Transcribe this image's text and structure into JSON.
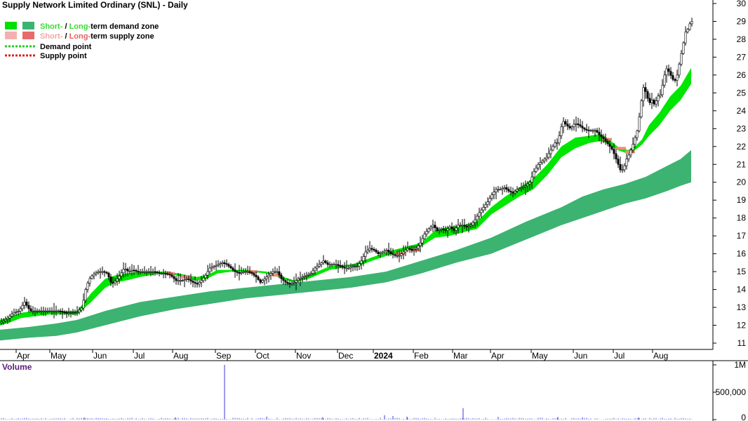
{
  "chart_data": {
    "type": "candlestick",
    "title": "Supply Network Limited Ordinary (SNL) - Daily",
    "legend": {
      "placement": "top-left",
      "entries": [
        {
          "prefix": "Short-",
          "sep": " / ",
          "mid": "Long-",
          "suffix": "term demand zone",
          "prefix_color": "#33dd33",
          "mid_color": "#33dd33",
          "swatches": [
            "#00e000",
            "#3cb371"
          ]
        },
        {
          "prefix": "Short-",
          "sep": " / ",
          "mid": "Long-",
          "suffix": "term supply zone",
          "prefix_color": "#f4a6a6",
          "mid_color": "#e86060",
          "swatches": [
            "#f4b0b0",
            "#e86a6a"
          ]
        },
        {
          "label": "Demand point",
          "dash_color": "#22cc22"
        },
        {
          "label": "Supply point",
          "dash_color": "#dd2222"
        }
      ]
    },
    "price_axis": {
      "position": "right",
      "ylim": [
        10.5,
        30
      ],
      "ticks": [
        "11",
        "12",
        "13",
        "14",
        "15",
        "16",
        "17",
        "18",
        "19",
        "20",
        "21",
        "22",
        "23",
        "24",
        "25",
        "26",
        "27",
        "28",
        "29",
        "30"
      ]
    },
    "x_labels": [
      "Apr",
      "May",
      "Jun",
      "Jul",
      "Aug",
      "Sep",
      "Oct",
      "Nov",
      "Dec",
      "2024",
      "Feb",
      "Mar",
      "Apr",
      "May",
      "Jun",
      "Jul",
      "Aug"
    ],
    "price_path": [
      [
        0,
        12.1
      ],
      [
        6,
        12.2
      ],
      [
        14,
        12.4
      ],
      [
        22,
        12.7
      ],
      [
        30,
        12.8
      ],
      [
        38,
        13.3
      ],
      [
        46,
        12.8
      ],
      [
        56,
        12.8
      ],
      [
        66,
        12.8
      ],
      [
        76,
        12.8
      ],
      [
        86,
        12.8
      ],
      [
        96,
        12.7
      ],
      [
        104,
        12.7
      ],
      [
        112,
        12.7
      ],
      [
        120,
        13.0
      ],
      [
        126,
        14.2
      ],
      [
        132,
        14.7
      ],
      [
        138,
        14.9
      ],
      [
        144,
        15.0
      ],
      [
        150,
        15.0
      ],
      [
        156,
        14.9
      ],
      [
        162,
        14.3
      ],
      [
        168,
        14.5
      ],
      [
        174,
        14.8
      ],
      [
        180,
        15.2
      ],
      [
        186,
        15.0
      ],
      [
        192,
        15.1
      ],
      [
        198,
        15.0
      ],
      [
        206,
        15.0
      ],
      [
        214,
        15.0
      ],
      [
        222,
        15.0
      ],
      [
        230,
        14.9
      ],
      [
        238,
        14.9
      ],
      [
        246,
        14.8
      ],
      [
        254,
        14.5
      ],
      [
        262,
        14.5
      ],
      [
        270,
        14.6
      ],
      [
        278,
        14.4
      ],
      [
        284,
        14.3
      ],
      [
        290,
        14.5
      ],
      [
        296,
        14.8
      ],
      [
        302,
        15.2
      ],
      [
        308,
        15.3
      ],
      [
        314,
        15.4
      ],
      [
        320,
        15.5
      ],
      [
        326,
        15.4
      ],
      [
        332,
        15.2
      ],
      [
        338,
        15.0
      ],
      [
        344,
        14.9
      ],
      [
        350,
        15.0
      ],
      [
        356,
        15.0
      ],
      [
        362,
        14.9
      ],
      [
        368,
        14.7
      ],
      [
        374,
        14.4
      ],
      [
        380,
        14.6
      ],
      [
        386,
        14.8
      ],
      [
        392,
        15.0
      ],
      [
        398,
        15.0
      ],
      [
        404,
        14.6
      ],
      [
        410,
        14.4
      ],
      [
        416,
        14.3
      ],
      [
        422,
        14.4
      ],
      [
        428,
        14.6
      ],
      [
        434,
        14.7
      ],
      [
        440,
        14.8
      ],
      [
        446,
        14.9
      ],
      [
        452,
        15.2
      ],
      [
        458,
        15.4
      ],
      [
        464,
        15.6
      ],
      [
        470,
        15.4
      ],
      [
        476,
        15.4
      ],
      [
        482,
        15.4
      ],
      [
        488,
        15.3
      ],
      [
        494,
        15.2
      ],
      [
        500,
        15.2
      ],
      [
        506,
        15.3
      ],
      [
        512,
        15.3
      ],
      [
        518,
        15.6
      ],
      [
        524,
        16.1
      ],
      [
        530,
        16.3
      ],
      [
        536,
        16.2
      ],
      [
        542,
        16.0
      ],
      [
        548,
        16.1
      ],
      [
        554,
        16.2
      ],
      [
        560,
        16.0
      ],
      [
        566,
        15.9
      ],
      [
        572,
        15.9
      ],
      [
        578,
        16.1
      ],
      [
        584,
        16.3
      ],
      [
        590,
        16.2
      ],
      [
        596,
        16.3
      ],
      [
        602,
        16.6
      ],
      [
        608,
        17.1
      ],
      [
        614,
        17.4
      ],
      [
        620,
        17.6
      ],
      [
        626,
        17.3
      ],
      [
        632,
        17.4
      ],
      [
        638,
        17.3
      ],
      [
        644,
        17.5
      ],
      [
        650,
        17.3
      ],
      [
        656,
        17.6
      ],
      [
        662,
        17.6
      ],
      [
        668,
        17.5
      ],
      [
        674,
        17.6
      ],
      [
        680,
        17.9
      ],
      [
        686,
        18.3
      ],
      [
        692,
        18.6
      ],
      [
        698,
        18.9
      ],
      [
        704,
        19.3
      ],
      [
        710,
        19.6
      ],
      [
        716,
        19.6
      ],
      [
        722,
        19.7
      ],
      [
        728,
        19.5
      ],
      [
        734,
        19.4
      ],
      [
        740,
        19.6
      ],
      [
        746,
        19.7
      ],
      [
        752,
        19.8
      ],
      [
        758,
        20.0
      ],
      [
        764,
        20.6
      ],
      [
        770,
        21.0
      ],
      [
        776,
        21.2
      ],
      [
        782,
        21.4
      ],
      [
        788,
        21.8
      ],
      [
        794,
        22.2
      ],
      [
        798,
        22.2
      ],
      [
        802,
        23.0
      ],
      [
        806,
        23.4
      ],
      [
        810,
        23.2
      ],
      [
        816,
        23.0
      ],
      [
        822,
        23.3
      ],
      [
        828,
        23.2
      ],
      [
        834,
        23.0
      ],
      [
        840,
        22.9
      ],
      [
        846,
        22.9
      ],
      [
        852,
        22.9
      ],
      [
        858,
        22.6
      ],
      [
        864,
        22.4
      ],
      [
        870,
        22.1
      ],
      [
        876,
        21.8
      ],
      [
        880,
        21.4
      ],
      [
        884,
        21.0
      ],
      [
        888,
        20.6
      ],
      [
        892,
        20.8
      ],
      [
        896,
        21.3
      ],
      [
        900,
        21.6
      ],
      [
        904,
        22.0
      ],
      [
        908,
        22.5
      ],
      [
        912,
        23.0
      ],
      [
        916,
        24.3
      ],
      [
        920,
        25.3
      ],
      [
        924,
        25.0
      ],
      [
        928,
        24.4
      ],
      [
        932,
        24.6
      ],
      [
        936,
        24.3
      ],
      [
        940,
        24.8
      ],
      [
        944,
        24.9
      ],
      [
        948,
        25.6
      ],
      [
        952,
        26.4
      ],
      [
        956,
        26.2
      ],
      [
        960,
        25.9
      ],
      [
        964,
        25.6
      ],
      [
        968,
        26.0
      ],
      [
        972,
        26.8
      ],
      [
        976,
        27.6
      ],
      [
        980,
        28.4
      ],
      [
        984,
        28.6
      ],
      [
        987,
        29.0
      ]
    ],
    "short_term_zone": [
      [
        0,
        12.0,
        12.3
      ],
      [
        10,
        12.1,
        12.4
      ],
      [
        30,
        12.4,
        12.7
      ],
      [
        50,
        12.5,
        12.8
      ],
      [
        70,
        12.6,
        12.8
      ],
      [
        100,
        12.6,
        12.8
      ],
      [
        110,
        12.6,
        12.8
      ],
      [
        130,
        13.3,
        13.8
      ],
      [
        150,
        14.1,
        14.6
      ],
      [
        165,
        14.4,
        14.8
      ],
      [
        180,
        14.5,
        14.9
      ],
      [
        200,
        14.7,
        15.0
      ],
      [
        215,
        14.8,
        15.0
      ],
      [
        225,
        14.9,
        15.0
      ],
      [
        240,
        14.9,
        15.0
      ],
      [
        280,
        14.5,
        14.7
      ],
      [
        295,
        14.6,
        14.8
      ],
      [
        310,
        14.9,
        15.1
      ],
      [
        330,
        15.0,
        15.1
      ],
      [
        355,
        15.0,
        15.1
      ],
      [
        380,
        14.9,
        15.0
      ],
      [
        420,
        14.4,
        14.5
      ],
      [
        440,
        14.6,
        14.8
      ],
      [
        470,
        15.1,
        15.3
      ],
      [
        500,
        15.3,
        15.4
      ],
      [
        510,
        15.3,
        15.5
      ],
      [
        530,
        15.6,
        15.8
      ],
      [
        560,
        16.0,
        16.2
      ],
      [
        580,
        16.2,
        16.4
      ],
      [
        600,
        16.4,
        16.6
      ],
      [
        620,
        16.9,
        17.3
      ],
      [
        640,
        17.0,
        17.5
      ],
      [
        660,
        17.2,
        17.6
      ],
      [
        680,
        17.4,
        17.8
      ],
      [
        700,
        18.2,
        18.6
      ],
      [
        720,
        18.7,
        19.2
      ],
      [
        740,
        19.2,
        19.7
      ],
      [
        760,
        19.6,
        20.2
      ],
      [
        780,
        20.4,
        21.0
      ],
      [
        800,
        21.4,
        22.0
      ],
      [
        820,
        21.9,
        22.5
      ],
      [
        840,
        22.2,
        22.6
      ],
      [
        855,
        22.3,
        22.7
      ],
      [
        865,
        22.2,
        22.5
      ],
      [
        880,
        21.8,
        22.0
      ],
      [
        895,
        21.6,
        21.8
      ],
      [
        905,
        21.8,
        22.0
      ],
      [
        915,
        22.1,
        22.4
      ],
      [
        925,
        22.6,
        23.2
      ],
      [
        940,
        23.2,
        23.9
      ],
      [
        955,
        24.0,
        24.8
      ],
      [
        970,
        24.6,
        25.4
      ],
      [
        985,
        25.5,
        26.4
      ]
    ],
    "long_term_zone": [
      [
        0,
        11.15,
        11.75
      ],
      [
        40,
        11.3,
        11.9
      ],
      [
        80,
        11.4,
        12.1
      ],
      [
        110,
        11.6,
        12.3
      ],
      [
        150,
        12.0,
        12.8
      ],
      [
        200,
        12.5,
        13.3
      ],
      [
        250,
        12.9,
        13.6
      ],
      [
        300,
        13.2,
        13.9
      ],
      [
        350,
        13.5,
        14.1
      ],
      [
        400,
        13.7,
        14.3
      ],
      [
        450,
        13.9,
        14.5
      ],
      [
        500,
        14.1,
        14.7
      ],
      [
        550,
        14.4,
        15.0
      ],
      [
        600,
        14.9,
        15.6
      ],
      [
        650,
        15.5,
        16.2
      ],
      [
        700,
        16.0,
        16.9
      ],
      [
        750,
        16.8,
        17.8
      ],
      [
        800,
        17.6,
        18.6
      ],
      [
        830,
        18.0,
        19.2
      ],
      [
        860,
        18.4,
        19.6
      ],
      [
        890,
        18.8,
        19.9
      ],
      [
        920,
        19.1,
        20.3
      ],
      [
        950,
        19.5,
        20.9
      ],
      [
        970,
        19.8,
        21.3
      ],
      [
        985,
        20.0,
        21.8
      ]
    ],
    "supply_points": [
      [
        242,
        14.9
      ],
      [
        265,
        14.7
      ],
      [
        360,
        15.0
      ],
      [
        395,
        14.8
      ],
      [
        570,
        16.0
      ],
      [
        592,
        16.2
      ],
      [
        865,
        22.4
      ],
      [
        885,
        21.9
      ],
      [
        898,
        21.7
      ]
    ],
    "volume_axis": {
      "label": "Volume",
      "ticks": [
        "0",
        "500,000",
        "1M"
      ],
      "ylim": [
        0,
        1000000
      ]
    },
    "volume_spikes": [
      [
        320,
        1000000
      ],
      [
        660,
        210000
      ],
      [
        548,
        80000
      ],
      [
        560,
        65000
      ],
      [
        580,
        55000
      ],
      [
        710,
        50000
      ],
      [
        460,
        45000
      ],
      [
        380,
        55000
      ],
      [
        910,
        40000
      ],
      [
        795,
        48000
      ],
      [
        830,
        42000
      ],
      [
        250,
        40000
      ],
      [
        120,
        38000
      ]
    ]
  }
}
